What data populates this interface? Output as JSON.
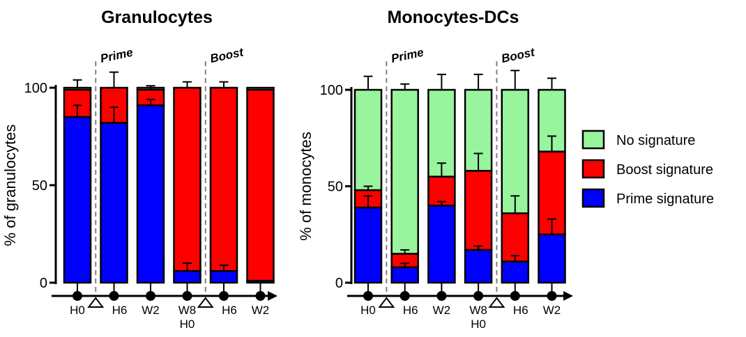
{
  "chart_data": [
    {
      "type": "bar",
      "stacked": true,
      "title": "Granulocytes",
      "xlabel": "",
      "ylabel": "% of granulocytes",
      "ylim": [
        0,
        100
      ],
      "yticks": [
        "0",
        "50",
        "100"
      ],
      "categories": [
        "H0",
        "H6",
        "W2",
        "W8",
        "H6",
        "W2"
      ],
      "sublabels": [
        "",
        "",
        "",
        "H0",
        "",
        ""
      ],
      "markers": [
        {
          "label": "Prime",
          "between": [
            0,
            1
          ]
        },
        {
          "label": "Boost",
          "between": [
            3,
            4
          ]
        }
      ],
      "series": [
        {
          "name": "Prime signature",
          "color": "#0000ff",
          "values": [
            85,
            82,
            91,
            6,
            6,
            1
          ],
          "error": [
            6,
            8,
            3,
            4,
            3,
            0
          ]
        },
        {
          "name": "Boost signature",
          "color": "#ff0000",
          "values": [
            14,
            18,
            8,
            94,
            94,
            98
          ],
          "error": [
            0,
            0,
            1,
            0,
            0,
            0
          ]
        },
        {
          "name": "No signature",
          "color": "#98f59e",
          "values": [
            1,
            0,
            1,
            0,
            0,
            1
          ],
          "error": [
            4,
            8,
            1,
            3,
            3,
            0
          ]
        }
      ]
    },
    {
      "type": "bar",
      "stacked": true,
      "title": "Monocytes-DCs",
      "xlabel": "",
      "ylabel": "% of monocytes",
      "ylim": [
        0,
        100
      ],
      "yticks": [
        "0",
        "50",
        "100"
      ],
      "categories": [
        "H0",
        "H6",
        "W2",
        "W8",
        "H6",
        "W2"
      ],
      "sublabels": [
        "",
        "",
        "",
        "H0",
        "",
        ""
      ],
      "markers": [
        {
          "label": "Prime",
          "between": [
            0,
            1
          ]
        },
        {
          "label": "Boost",
          "between": [
            3,
            4
          ]
        }
      ],
      "series": [
        {
          "name": "Prime signature",
          "color": "#0000ff",
          "values": [
            39,
            8,
            40,
            17,
            11,
            25
          ],
          "error": [
            6,
            2,
            2,
            2,
            3,
            8
          ]
        },
        {
          "name": "Boost signature",
          "color": "#ff0000",
          "values": [
            9,
            7,
            15,
            41,
            25,
            43
          ],
          "error": [
            2,
            2,
            7,
            9,
            9,
            8
          ]
        },
        {
          "name": "No signature",
          "color": "#98f59e",
          "values": [
            52,
            85,
            45,
            42,
            64,
            32
          ],
          "error": [
            7,
            3,
            8,
            8,
            10,
            6
          ]
        }
      ]
    }
  ],
  "legend": {
    "items": [
      {
        "label": "No signature",
        "color": "#98f59e"
      },
      {
        "label": "Boost signature",
        "color": "#ff0000"
      },
      {
        "label": "Prime signature",
        "color": "#0000ff"
      }
    ]
  }
}
